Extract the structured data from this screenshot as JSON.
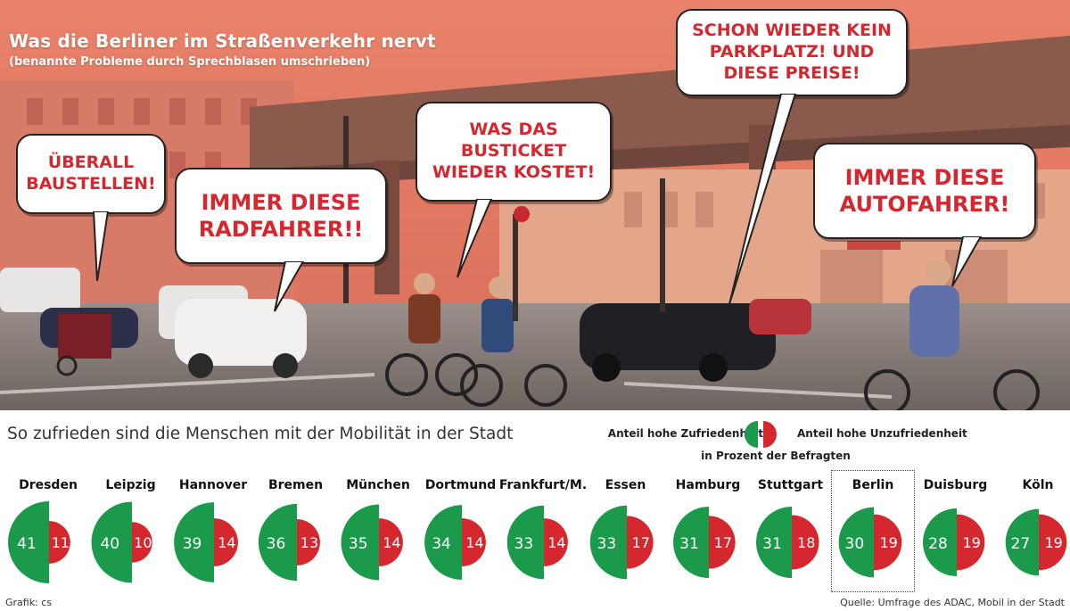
{
  "header": {
    "title": "Was die Berliner im Straßenverkehr nervt",
    "subtitle": "(benannte Probleme durch Sprechblasen umschrieben)"
  },
  "bubbles": [
    {
      "text": "Überall Baustellen!"
    },
    {
      "text": "Immer diese Radfahrer!!"
    },
    {
      "text": "Was das Busticket wieder kostet!"
    },
    {
      "text": "Schon wieder kein Parkplatz! Und diese Preise!"
    },
    {
      "text": "Immer diese Autofahrer!"
    }
  ],
  "legend": {
    "left_label": "Anteil hohe Zufriedenheit",
    "right_label": "Anteil hohe Unzufriedenheit",
    "note": "in Prozent der Befragten"
  },
  "colors": {
    "satisfied": "#1a9a4a",
    "dissatisfied": "#d5272e",
    "bubble_text": "#d5272e"
  },
  "chart_data": {
    "type": "half-pie",
    "title": "So zufrieden sind die Menschen mit der Mobilität in der Stadt",
    "series": [
      {
        "name": "Anteil hohe Zufriedenheit"
      },
      {
        "name": "Anteil hohe Unzufriedenheit"
      }
    ],
    "categories": [
      "Dresden",
      "Leipzig",
      "Hannover",
      "Bremen",
      "München",
      "Dortmund",
      "Frankfurt/M.",
      "Essen",
      "Hamburg",
      "Stuttgart",
      "Berlin",
      "Duisburg",
      "Köln"
    ],
    "satisfied": [
      41,
      40,
      39,
      36,
      35,
      34,
      33,
      33,
      31,
      31,
      30,
      28,
      27
    ],
    "dissatisfied": [
      11,
      10,
      14,
      13,
      14,
      14,
      14,
      17,
      17,
      18,
      19,
      19,
      19
    ],
    "highlight": "Berlin"
  },
  "footer": {
    "credit": "Grafik: cs",
    "source": "Quelle: Umfrage des ADAC, Mobil in der Stadt"
  }
}
